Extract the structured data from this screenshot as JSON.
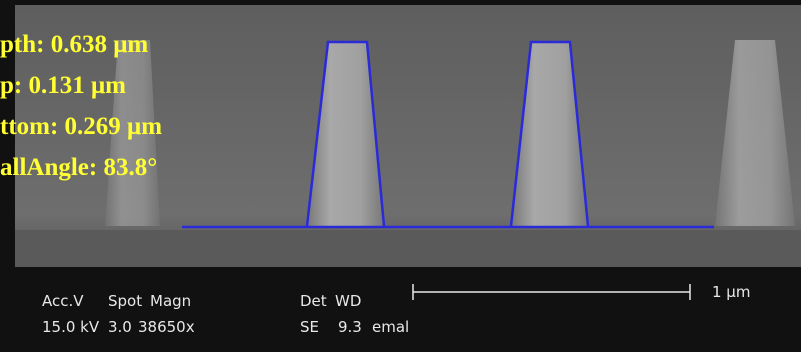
{
  "measurements": [
    "pth: 0.638 μm",
    "p: 0.131 μm",
    "ttom: 0.269 μm",
    "allAngle: 83.8°"
  ],
  "info_bar": {
    "headers": [
      "Acc.V",
      "Spot",
      "Magn",
      "Det",
      "WD"
    ],
    "values": [
      "15.0 kV",
      "3.0",
      "38650x",
      "SE",
      "9.3",
      "emal"
    ],
    "scale_bar": "1 μm"
  }
}
